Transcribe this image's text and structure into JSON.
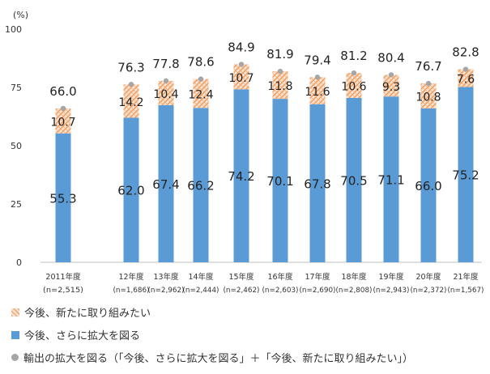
{
  "chart_data": {
    "type": "bar",
    "y_unit": "(%)",
    "ylim": [
      0,
      100
    ],
    "y_ticks": [
      "0",
      "25",
      "50",
      "75",
      "100"
    ],
    "categories": [
      "2011年度",
      "12年度",
      "13年度",
      "14年度",
      "15年度",
      "16年度",
      "17年度",
      "18年度",
      "19年度",
      "20年度",
      "21年度"
    ],
    "sample_sizes": [
      "(n=2,515)",
      "(n=1,686)",
      "(n=2,962)",
      "(n=2,444)",
      "(n=2,462)",
      "(n=2,603)",
      "(n=2,690)",
      "(n=2,808)",
      "(n=2,943)",
      "(n=2,372)",
      "(n=1,567)"
    ],
    "series": [
      {
        "name": "今後、さらに拡大を図る",
        "values": [
          55.3,
          62.0,
          67.4,
          66.2,
          74.2,
          70.1,
          67.8,
          70.5,
          71.1,
          66.0,
          75.2
        ],
        "labels": [
          "55.3",
          "62.0",
          "67.4",
          "66.2",
          "74.2",
          "70.1",
          "67.8",
          "70.5",
          "71.1",
          "66.0",
          "75.2"
        ],
        "color": "#5b9bd5"
      },
      {
        "name": "今後、新たに取り組みたい",
        "values": [
          10.7,
          14.2,
          10.4,
          12.4,
          10.7,
          11.8,
          11.6,
          10.6,
          9.3,
          10.8,
          7.6
        ],
        "labels": [
          "10.7",
          "14.2",
          "10.4",
          "12.4",
          "10.7",
          "11.8",
          "11.6",
          "10.6",
          "9.3",
          "10.8",
          "7.6"
        ],
        "color": "#f4b183"
      },
      {
        "name": "輸出の拡大を図る（「今後、さらに拡大を図る」＋「今後、新たに取り組みたい」）",
        "values": [
          66.0,
          76.3,
          77.8,
          78.6,
          84.9,
          81.9,
          79.4,
          81.2,
          80.4,
          76.7,
          82.8
        ],
        "labels": [
          "66.0",
          "76.3",
          "77.8",
          "78.6",
          "84.9",
          "81.9",
          "79.4",
          "81.2",
          "80.4",
          "76.7",
          "82.8"
        ],
        "color": "#a6a6a6"
      }
    ],
    "legend_position": "bottom-left",
    "grid": false
  },
  "legend": {
    "new_label": "今後、新たに取り組みたい",
    "expand_label": "今後、さらに拡大を図る",
    "total_label": "輸出の拡大を図る（「今後、さらに拡大を図る」＋「今後、新たに取り組みたい」）"
  }
}
